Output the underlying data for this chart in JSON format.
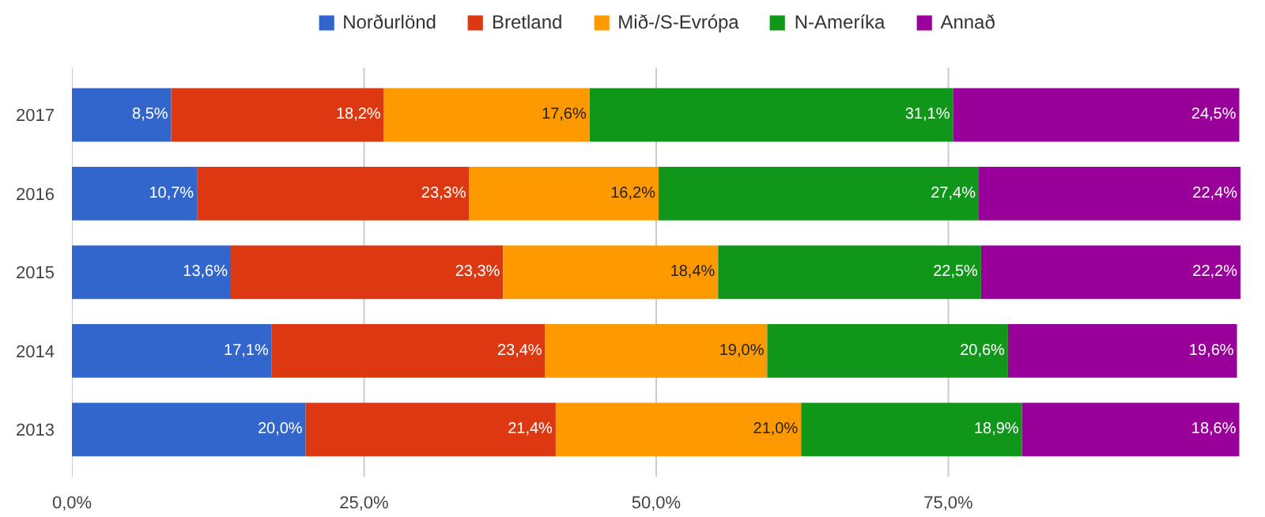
{
  "chart_data": {
    "type": "bar",
    "orientation": "horizontal",
    "stacked": true,
    "categories": [
      "2017",
      "2016",
      "2015",
      "2014",
      "2013"
    ],
    "series": [
      {
        "name": "Norðurlönd",
        "color": "#3366cc",
        "values": [
          8.5,
          10.7,
          13.6,
          17.1,
          20.0
        ],
        "value_labels": [
          "8,5%",
          "10,7%",
          "13,6%",
          "17,1%",
          "20,0%"
        ]
      },
      {
        "name": "Bretland",
        "color": "#dc3912",
        "values": [
          18.2,
          23.3,
          23.3,
          23.4,
          21.4
        ],
        "value_labels": [
          "18,2%",
          "23,3%",
          "23,3%",
          "23,4%",
          "21,4%"
        ]
      },
      {
        "name": "Mið-/S-Evrópa",
        "color": "#ff9900",
        "values": [
          17.6,
          16.2,
          18.4,
          19.0,
          21.0
        ],
        "value_labels": [
          "17,6%",
          "16,2%",
          "18,4%",
          "19,0%",
          "21,0%"
        ]
      },
      {
        "name": "N-Ameríka",
        "color": "#109618",
        "values": [
          31.1,
          27.4,
          22.5,
          20.6,
          18.9
        ],
        "value_labels": [
          "31,1%",
          "27,4%",
          "22,5%",
          "20,6%",
          "18,9%"
        ]
      },
      {
        "name": "Annað",
        "color": "#990099",
        "values": [
          24.5,
          22.4,
          22.2,
          19.6,
          18.6
        ],
        "value_labels": [
          "24,5%",
          "22,4%",
          "22,2%",
          "19,6%",
          "18,6%"
        ]
      }
    ],
    "xlim": [
      0,
      100
    ],
    "xticks": [
      {
        "value": 0,
        "label": "0,0%"
      },
      {
        "value": 25,
        "label": "25,0%"
      },
      {
        "value": 50,
        "label": "50,0%"
      },
      {
        "value": 75,
        "label": "75,0%"
      }
    ],
    "grid": "x",
    "legend": "top"
  }
}
